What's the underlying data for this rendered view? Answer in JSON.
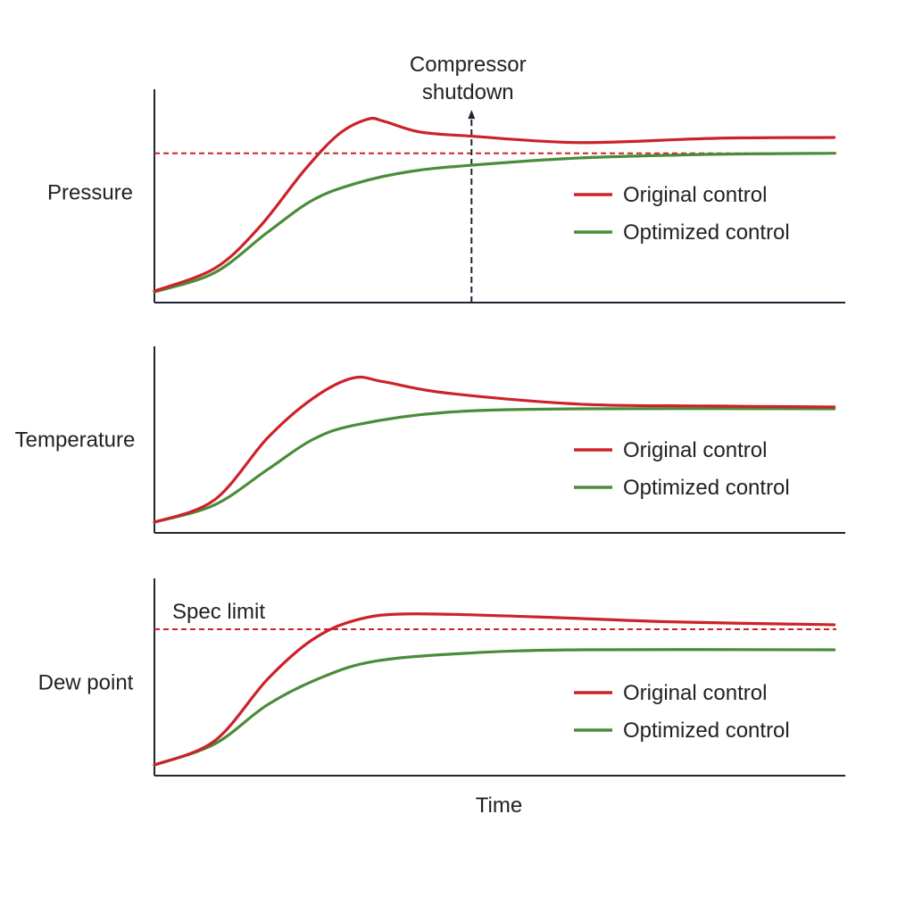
{
  "colors": {
    "original": "#cc2229",
    "optimized": "#4a8c3a",
    "axis": "#1f2430",
    "reference": "#cc2229",
    "annotation": "#1f2430"
  },
  "xlabel": "Time",
  "chart_data": [
    {
      "type": "line",
      "ylabel": "Pressure",
      "xlim": [
        0,
        100
      ],
      "ylim": [
        0,
        100
      ],
      "grid": false,
      "legend_position": "right",
      "series": [
        {
          "name": "Original control",
          "x": [
            0,
            8.7,
            15.1,
            21.7,
            26.7,
            30.9,
            33.2,
            38.4,
            45.9,
            61.6,
            81,
            98.4
          ],
          "y": [
            5.4,
            16,
            35,
            62,
            79,
            86,
            85,
            80,
            78,
            75,
            77,
            77.4
          ]
        },
        {
          "name": "Optimized control",
          "x": [
            0,
            8.7,
            16.4,
            22.9,
            29.3,
            37.1,
            45.9,
            61.6,
            81,
            98.4
          ],
          "y": [
            5,
            14,
            33,
            48,
            56,
            61.5,
            64.4,
            67.8,
            69.5,
            70
          ]
        }
      ],
      "reference_line": {
        "y": 70,
        "label": ""
      },
      "annotation": {
        "text_line1": "Compressor",
        "text_line2": "shutdown",
        "x": 45.9,
        "arrow_top_y": 89.5
      }
    },
    {
      "type": "line",
      "ylabel": "Temperature",
      "xlim": [
        0,
        100
      ],
      "ylim": [
        0,
        100
      ],
      "grid": false,
      "legend_position": "right",
      "series": [
        {
          "name": "Original control",
          "x": [
            0,
            8.7,
            16.4,
            22.9,
            28.7,
            33.2,
            42.2,
            61.6,
            81,
            98.4
          ],
          "y": [
            5.7,
            17.7,
            51,
            72,
            83,
            81,
            75,
            69,
            68,
            67.5
          ]
        },
        {
          "name": "Optimized control",
          "x": [
            0,
            8.7,
            16.4,
            22.9,
            29.3,
            42.2,
            61.6,
            98.4
          ],
          "y": [
            5.7,
            15,
            34,
            50,
            58,
            64.6,
            66.5,
            66.5
          ]
        }
      ]
    },
    {
      "type": "line",
      "ylabel": "Dew point",
      "xlim": [
        0,
        100
      ],
      "ylim": [
        0,
        100
      ],
      "grid": false,
      "legend_position": "right",
      "series": [
        {
          "name": "Original control",
          "x": [
            0,
            8.7,
            16.4,
            22.9,
            29.3,
            37.1,
            55.2,
            74.5,
            98.4
          ],
          "y": [
            5.4,
            17.6,
            49,
            69,
            79,
            82,
            80.5,
            78,
            76.5
          ]
        },
        {
          "name": "Optimized control",
          "x": [
            0,
            8.7,
            16.4,
            24.2,
            31.9,
            44.8,
            61.6,
            98.4
          ],
          "y": [
            5.4,
            16,
            36,
            49.8,
            58,
            62,
            63.8,
            63.8
          ]
        }
      ],
      "reference_line": {
        "y": 74.2,
        "label": "Spec limit"
      }
    }
  ]
}
